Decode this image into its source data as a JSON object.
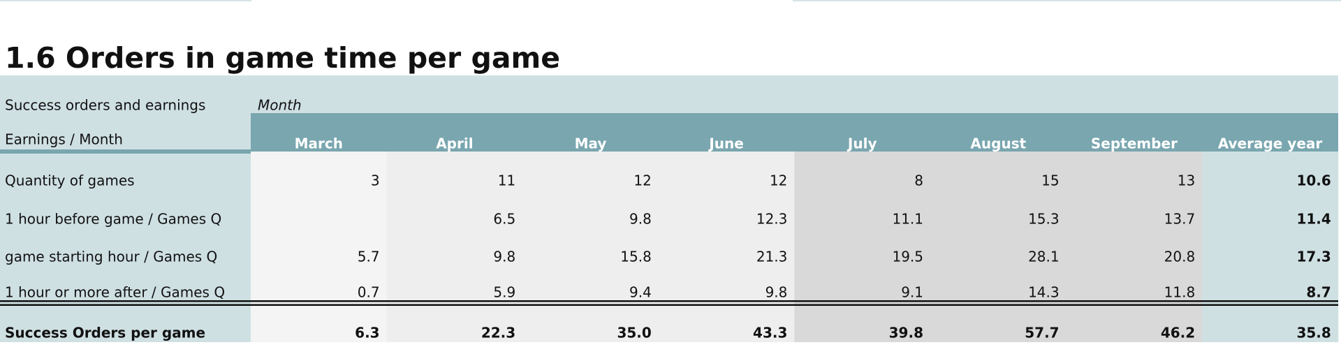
{
  "title": "1.6 Orders in game time per game",
  "table": {
    "corner": [
      "Success orders and earnings",
      "Earnings / Month"
    ],
    "group_header": "Month",
    "columns": [
      "March",
      "April",
      "May",
      "June",
      "July",
      "August",
      "September",
      "Average year"
    ],
    "rows": [
      {
        "label": "Quantity of games",
        "cells": [
          "3",
          "11",
          "12",
          "12",
          "8",
          "15",
          "13",
          "10.6"
        ]
      },
      {
        "label": "1 hour before game / Games Q",
        "cells": [
          null,
          "6.5",
          "9.8",
          "12.3",
          "11.1",
          "15.3",
          "13.7",
          "11.4"
        ]
      },
      {
        "label": "game starting hour / Games Q",
        "cells": [
          "5.7",
          "9.8",
          "15.8",
          "21.3",
          "19.5",
          "28.1",
          "20.8",
          "17.3"
        ]
      },
      {
        "label": "1 hour or more after / Games Q",
        "cells": [
          "0.7",
          "5.9",
          "9.4",
          "9.8",
          "9.1",
          "14.3",
          "11.8",
          "8.7"
        ]
      }
    ],
    "total": {
      "label": "Success Orders per game",
      "cells": [
        "6.3",
        "22.3",
        "35.0",
        "43.3",
        "39.8",
        "57.7",
        "46.2",
        "35.8"
      ]
    }
  }
}
